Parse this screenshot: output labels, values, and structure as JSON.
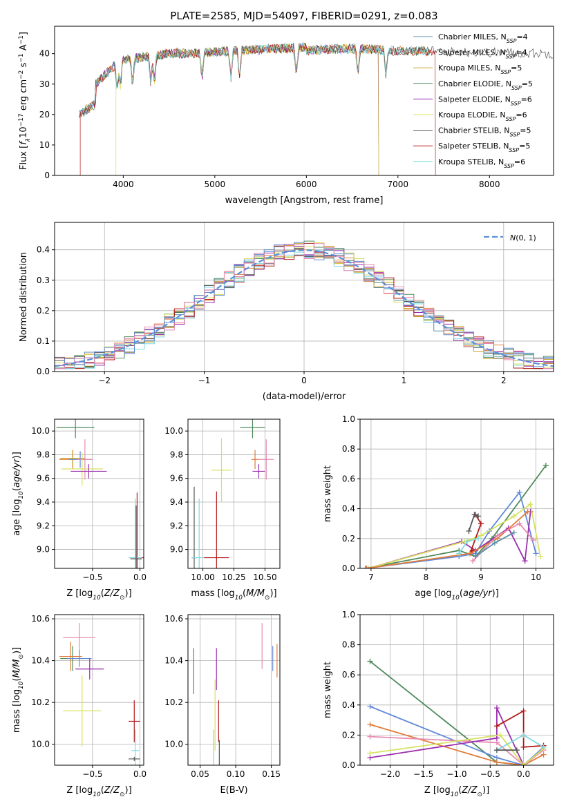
{
  "figure": {
    "title": "PLATE=2585, MJD=54097, FIBERID=0291, z=0.083"
  },
  "colors": {
    "Chabrier MILES": "#5b8fa8",
    "Salpeter MILES": "#e07b39",
    "Kroupa MILES": "#c8a020",
    "Chabrier ELODIE": "#4e8a5a",
    "Salpeter ELODIE": "#9b2fae",
    "Kroupa ELODIE": "#d8e060",
    "Chabrier STELIB": "#555555",
    "Salpeter STELIB": "#b21a1a",
    "Kroupa STELIB": "#7fd8e0",
    "Blue": "#6189d8",
    "Pink": "#e889b0",
    "Gaussian": "#5b8fd8"
  },
  "chart_data": [
    {
      "id": "spectrum",
      "type": "line",
      "xlabel": "wavelength [Angstrom, rest frame]",
      "ylabel": "Flux [f_λ 10^-17 erg cm^-2 s^-1 A^-1]",
      "xlim": [
        3250,
        8700
      ],
      "ylim": [
        0,
        49
      ],
      "xticks": [
        4000,
        5000,
        6000,
        7000,
        8000
      ],
      "yticks": [
        0,
        10,
        20,
        30,
        40
      ],
      "grid": false,
      "legend_position": "top-right",
      "legend": [
        {
          "label": "Chabrier MILES, N",
          "sub": "SSP",
          "suffix": "=4",
          "color_key": "Chabrier MILES"
        },
        {
          "label": "Salpeter MILES, N",
          "sub": "SSP",
          "suffix": "=4",
          "color_key": "Salpeter MILES"
        },
        {
          "label": "Kroupa MILES, N",
          "sub": "SSP",
          "suffix": "=5",
          "color_key": "Kroupa MILES"
        },
        {
          "label": "Chabrier ELODIE, N",
          "sub": "SSP",
          "suffix": "=5",
          "color_key": "Chabrier ELODIE"
        },
        {
          "label": "Salpeter ELODIE, N",
          "sub": "SSP",
          "suffix": "=6",
          "color_key": "Salpeter ELODIE"
        },
        {
          "label": "Kroupa ELODIE, N",
          "sub": "SSP",
          "suffix": "=6",
          "color_key": "Kroupa ELODIE"
        },
        {
          "label": "Chabrier STELIB, N",
          "sub": "SSP",
          "suffix": "=5",
          "color_key": "Chabrier STELIB"
        },
        {
          "label": "Salpeter STELIB, N",
          "sub": "SSP",
          "suffix": "=5",
          "color_key": "Salpeter STELIB"
        },
        {
          "label": "Kroupa STELIB, N",
          "sub": "SSP",
          "suffix": "=6",
          "color_key": "Kroupa STELIB"
        }
      ],
      "data_range": [
        3520,
        8700
      ],
      "drops": [
        {
          "color_key": "Salpeter STELIB",
          "x": [
            3530,
            7410
          ]
        },
        {
          "color_key": "Kroupa ELODIE",
          "x": [
            3920,
            6790
          ]
        },
        {
          "color_key": "Salpeter ELODIE",
          "x": [
            6790
          ]
        },
        {
          "color_key": "Kroupa MILES",
          "x": [
            6790
          ]
        }
      ]
    },
    {
      "id": "residuals",
      "type": "histogram",
      "xlabel": "(data-model)/error",
      "ylabel": "Normed distribution",
      "xlim": [
        -2.5,
        2.5
      ],
      "ylim": [
        0,
        0.49
      ],
      "xticks": [
        -2,
        -1,
        0,
        1,
        2
      ],
      "xtick_labels": [
        "−2",
        "−1",
        "0",
        "1",
        "2"
      ],
      "yticks": [
        0,
        0.1,
        0.2,
        0.3,
        0.4
      ],
      "ytick_labels": [
        "0.0",
        "0.1",
        "0.2",
        "0.3",
        "0.4"
      ],
      "grid": true,
      "bin_width": 0.1,
      "legend_position": "top-right",
      "legend_label": "N(0,1)"
    },
    {
      "id": "age_vs_Z",
      "type": "scatter",
      "xlabel": "Z [log10(Z/Z☉)]",
      "ylabel": "age [log10(age/yr)]",
      "xlim": [
        -0.9,
        0.04
      ],
      "ylim": [
        8.84,
        10.1
      ],
      "xticks": [
        -0.5,
        0.0
      ],
      "xtick_labels": [
        "−0.5",
        "0.0"
      ],
      "yticks": [
        9.0,
        9.2,
        9.4,
        9.6,
        9.8,
        10.0
      ],
      "ytick_labels": [
        "9.0",
        "9.2",
        "9.4",
        "9.6",
        "9.8",
        "10.0"
      ],
      "grid": true,
      "points": [
        {
          "color_key": "Chabrier ELODIE",
          "x": -0.68,
          "y": 10.03,
          "xerr": 0.2,
          "yerr": 0.09
        },
        {
          "color_key": "Salpeter MILES",
          "x": -0.71,
          "y": 9.76,
          "xerr": 0.14,
          "yerr": 0.08
        },
        {
          "color_key": "Kroupa MILES",
          "x": -0.71,
          "y": 9.77,
          "xerr": 0.13,
          "yerr": 0.06
        },
        {
          "color_key": "Blue",
          "x": -0.63,
          "y": 9.76,
          "xerr": 0.12,
          "yerr": 0.07
        },
        {
          "color_key": "Pink",
          "x": -0.58,
          "y": 9.76,
          "xerr": 0.08,
          "yerr": 0.17
        },
        {
          "color_key": "Kroupa ELODIE",
          "x": -0.61,
          "y": 9.68,
          "xerr": 0.22,
          "yerr": 0.14
        },
        {
          "color_key": "Salpeter ELODIE",
          "x": -0.54,
          "y": 9.66,
          "xerr": 0.19,
          "yerr": 0.06
        },
        {
          "color_key": "Salpeter STELIB",
          "x": -0.03,
          "y": 8.93,
          "xerr": 0.08,
          "yerr": 0.55
        },
        {
          "color_key": "Kroupa STELIB",
          "x": -0.05,
          "y": 8.93,
          "xerr": 0.07,
          "yerr": 0.5
        },
        {
          "color_key": "Chabrier STELIB",
          "x": -0.04,
          "y": 8.92,
          "xerr": 0.06,
          "yerr": 0.45
        }
      ]
    },
    {
      "id": "age_vs_mass",
      "type": "scatter",
      "xlabel": "mass [log10(M/M☉)]",
      "ylabel": "",
      "xlim": [
        9.88,
        10.62
      ],
      "ylim": [
        8.84,
        10.1
      ],
      "xticks": [
        10.0,
        10.25,
        10.5
      ],
      "xtick_labels": [
        "10.00",
        "10.25",
        "10.50"
      ],
      "yticks": [
        9.0,
        9.2,
        9.4,
        9.6,
        9.8,
        10.0
      ],
      "ytick_labels": [
        "9.0",
        "9.2",
        "9.4",
        "9.6",
        "9.8",
        "10.0"
      ],
      "grid": true,
      "points": [
        {
          "color_key": "Chabrier ELODIE",
          "x": 10.4,
          "y": 10.03,
          "xerr": 0.1,
          "yerr": 0.09
        },
        {
          "color_key": "Kroupa ELODIE",
          "x": 10.15,
          "y": 9.67,
          "xerr": 0.08,
          "yerr": 0.27
        },
        {
          "color_key": "Salpeter ELODIE",
          "x": 10.45,
          "y": 9.66,
          "xerr": 0.05,
          "yerr": 0.06
        },
        {
          "color_key": "Salpeter MILES",
          "x": 10.42,
          "y": 9.76,
          "xerr": 0.03,
          "yerr": 0.08
        },
        {
          "color_key": "Pink",
          "x": 10.51,
          "y": 9.76,
          "xerr": 0.06,
          "yerr": 0.17
        },
        {
          "color_key": "Chabrier STELIB",
          "x": 9.93,
          "y": 8.93,
          "xerr": 0.02,
          "yerr": 0.6
        },
        {
          "color_key": "Kroupa STELIB",
          "x": 9.97,
          "y": 8.93,
          "xerr": 0.06,
          "yerr": 0.5
        },
        {
          "color_key": "Salpeter STELIB",
          "x": 10.11,
          "y": 8.93,
          "xerr": 0.1,
          "yerr": 0.56
        }
      ]
    },
    {
      "id": "weight_vs_age",
      "type": "line",
      "xlabel": "age [log10(age/yr)]",
      "ylabel": "mass weight",
      "xlim": [
        6.8,
        10.32
      ],
      "ylim": [
        0,
        1
      ],
      "xticks": [
        7,
        8,
        9,
        10
      ],
      "xtick_labels": [
        "7",
        "8",
        "9",
        "10"
      ],
      "yticks": [
        0,
        0.2,
        0.4,
        0.6,
        0.8,
        1.0
      ],
      "ytick_labels": [
        "0.0",
        "0.2",
        "0.4",
        "0.6",
        "0.8",
        "1.0"
      ],
      "grid": true,
      "series": [
        {
          "color_key": "Chabrier ELODIE",
          "x": [
            6.9,
            8.6,
            8.9,
            9.2,
            10.18
          ],
          "y": [
            0.0,
            0.12,
            0.08,
            0.2,
            0.69
          ]
        },
        {
          "color_key": "Blue",
          "x": [
            6.9,
            8.6,
            8.9,
            9.15,
            9.7,
            10.0
          ],
          "y": [
            0.0,
            0.08,
            0.1,
            0.25,
            0.51,
            0.1
          ]
        },
        {
          "color_key": "Salpeter ELODIE",
          "x": [
            6.95,
            8.65,
            8.9,
            9.5,
            9.8,
            9.9
          ],
          "y": [
            0.0,
            0.18,
            0.12,
            0.27,
            0.05,
            0.38
          ]
        },
        {
          "color_key": "Kroupa ELODIE",
          "x": [
            6.95,
            8.7,
            9.0,
            9.6,
            9.9,
            10.08
          ],
          "y": [
            0.0,
            0.18,
            0.22,
            0.35,
            0.43,
            0.08
          ]
        },
        {
          "color_key": "Salpeter STELIB",
          "x": [
            8.9,
            9.0,
            8.8,
            8.85
          ],
          "y": [
            0.36,
            0.3,
            0.1,
            0.12
          ]
        },
        {
          "color_key": "Chabrier STELIB",
          "x": [
            8.78,
            8.88,
            8.95
          ],
          "y": [
            0.25,
            0.36,
            0.35
          ]
        },
        {
          "color_key": "Salpeter MILES",
          "x": [
            6.92,
            8.8,
            9.3,
            9.85
          ],
          "y": [
            0.0,
            0.1,
            0.2,
            0.38
          ]
        },
        {
          "color_key": "Pink",
          "x": [
            8.85,
            9.3,
            9.7,
            9.95
          ],
          "y": [
            0.05,
            0.22,
            0.3,
            0.19
          ]
        },
        {
          "color_key": "Kroupa STELIB",
          "x": [
            8.6,
            8.75,
            8.95
          ],
          "y": [
            0.1,
            0.18,
            0.2
          ]
        },
        {
          "color_key": "Chabrier MILES",
          "x": [
            8.9,
            9.25,
            9.6
          ],
          "y": [
            0.08,
            0.17,
            0.24
          ]
        }
      ]
    },
    {
      "id": "mass_vs_Z",
      "type": "scatter",
      "xlabel": "Z [log10(Z/Z☉)]",
      "ylabel": "mass [log10(M/M☉)]",
      "xlim": [
        -0.9,
        0.04
      ],
      "ylim": [
        9.9,
        10.62
      ],
      "xticks": [
        -0.5,
        0.0
      ],
      "xtick_labels": [
        "−0.5",
        "0.0"
      ],
      "yticks": [
        10.0,
        10.2,
        10.4,
        10.6
      ],
      "ytick_labels": [
        "10.0",
        "10.2",
        "10.4",
        "10.6"
      ],
      "grid": true,
      "points": [
        {
          "color_key": "Pink",
          "x": -0.64,
          "y": 10.51,
          "xerr": 0.17,
          "yerr": 0.07
        },
        {
          "color_key": "Chabrier ELODIE",
          "x": -0.71,
          "y": 10.41,
          "xerr": 0.13,
          "yerr": 0.06
        },
        {
          "color_key": "Salpeter MILES",
          "x": -0.73,
          "y": 10.42,
          "xerr": 0.12,
          "yerr": 0.07
        },
        {
          "color_key": "Blue",
          "x": -0.64,
          "y": 10.41,
          "xerr": 0.13,
          "yerr": 0.04
        },
        {
          "color_key": "Salpeter ELODIE",
          "x": -0.53,
          "y": 10.36,
          "xerr": 0.15,
          "yerr": 0.05
        },
        {
          "color_key": "Kroupa ELODIE",
          "x": -0.61,
          "y": 10.16,
          "xerr": 0.2,
          "yerr": 0.17
        },
        {
          "color_key": "Salpeter STELIB",
          "x": -0.06,
          "y": 10.11,
          "xerr": 0.06,
          "yerr": 0.1
        },
        {
          "color_key": "Kroupa STELIB",
          "x": -0.05,
          "y": 9.97,
          "xerr": 0.04,
          "yerr": 0.1
        },
        {
          "color_key": "Chabrier STELIB",
          "x": -0.06,
          "y": 9.93,
          "xerr": 0.06,
          "yerr": 0.01
        }
      ]
    },
    {
      "id": "mass_vs_ebv",
      "type": "scatter",
      "xlabel": "E(B-V)",
      "ylabel": "",
      "xlim": [
        0.033,
        0.162
      ],
      "ylim": [
        9.9,
        10.62
      ],
      "xticks": [
        0.05,
        0.1,
        0.15
      ],
      "xtick_labels": [
        "0.05",
        "0.10",
        "0.15"
      ],
      "yticks": [
        10.0,
        10.2,
        10.4,
        10.6
      ],
      "ytick_labels": [
        "10.0",
        "10.2",
        "10.4",
        "10.6"
      ],
      "grid": true,
      "points": [
        {
          "color_key": "Chabrier ELODIE",
          "x": 0.041,
          "y": 10.35,
          "xerr": 0,
          "yerr": 0.11
        },
        {
          "color_key": "Kroupa STELIB",
          "x": 0.069,
          "y": 9.96,
          "xerr": 0,
          "yerr": 0.11
        },
        {
          "color_key": "Kroupa ELODIE",
          "x": 0.071,
          "y": 10.14,
          "xerr": 0,
          "yerr": 0.17
        },
        {
          "color_key": "Salpeter ELODIE",
          "x": 0.073,
          "y": 10.36,
          "xerr": 0,
          "yerr": 0.1
        },
        {
          "color_key": "Salpeter STELIB",
          "x": 0.076,
          "y": 10.11,
          "xerr": 0,
          "yerr": 0.1
        },
        {
          "color_key": "Chabrier STELIB",
          "x": 0.077,
          "y": 9.92,
          "xerr": 0,
          "yerr": 0.1
        },
        {
          "color_key": "Pink",
          "x": 0.137,
          "y": 10.47,
          "xerr": 0,
          "yerr": 0.11
        },
        {
          "color_key": "Blue",
          "x": 0.152,
          "y": 10.41,
          "xerr": 0,
          "yerr": 0.06
        },
        {
          "color_key": "Salpeter MILES",
          "x": 0.158,
          "y": 10.4,
          "xerr": 0,
          "yerr": 0.08
        }
      ]
    },
    {
      "id": "weight_vs_Z",
      "type": "line",
      "xlabel": "Z [log10(Z/Z☉)]",
      "ylabel": "mass weight",
      "xlim": [
        -2.45,
        0.45
      ],
      "ylim": [
        0,
        1
      ],
      "xticks": [
        -2.0,
        -1.5,
        -1.0,
        -0.5,
        0.0
      ],
      "xtick_labels": [
        "−2.0",
        "−1.5",
        "−1.0",
        "−0.5",
        "0.0"
      ],
      "yticks": [
        0,
        0.2,
        0.4,
        0.6,
        0.8,
        1.0
      ],
      "ytick_labels": [
        "0.0",
        "0.2",
        "0.4",
        "0.6",
        "0.8",
        "1.0"
      ],
      "grid": true,
      "series": [
        {
          "color_key": "Chabrier ELODIE",
          "x": [
            -2.3,
            -0.4,
            0.0
          ],
          "y": [
            0.69,
            0.02,
            0.0
          ]
        },
        {
          "color_key": "Blue",
          "x": [
            -2.3,
            -0.4,
            0.0,
            0.3
          ],
          "y": [
            0.39,
            0.05,
            0.0,
            0.12
          ]
        },
        {
          "color_key": "Salpeter MILES",
          "x": [
            -2.3,
            -0.4,
            0.0,
            0.3
          ],
          "y": [
            0.27,
            0.02,
            0.0,
            0.07
          ]
        },
        {
          "color_key": "Pink",
          "x": [
            -2.3,
            -0.4,
            0.0,
            0.3
          ],
          "y": [
            0.19,
            0.15,
            0.0,
            0.1
          ]
        },
        {
          "color_key": "Salpeter ELODIE",
          "x": [
            -2.3,
            -0.4,
            -0.4,
            0.0
          ],
          "y": [
            0.05,
            0.18,
            0.38,
            0.0
          ]
        },
        {
          "color_key": "Kroupa ELODIE",
          "x": [
            -2.3,
            -0.35,
            0.0,
            0.3
          ],
          "y": [
            0.08,
            0.2,
            0.0,
            0.11
          ]
        },
        {
          "color_key": "Salpeter STELIB",
          "x": [
            -0.4,
            0.0,
            0.0,
            0.3
          ],
          "y": [
            0.26,
            0.36,
            0.12,
            0.13
          ]
        },
        {
          "color_key": "Kroupa STELIB",
          "x": [
            -0.4,
            0.0,
            0.3
          ],
          "y": [
            0.1,
            0.2,
            0.12
          ]
        },
        {
          "color_key": "Chabrier STELIB",
          "x": [
            -0.4,
            -0.1
          ],
          "y": [
            0.1,
            0.1
          ]
        }
      ]
    }
  ]
}
